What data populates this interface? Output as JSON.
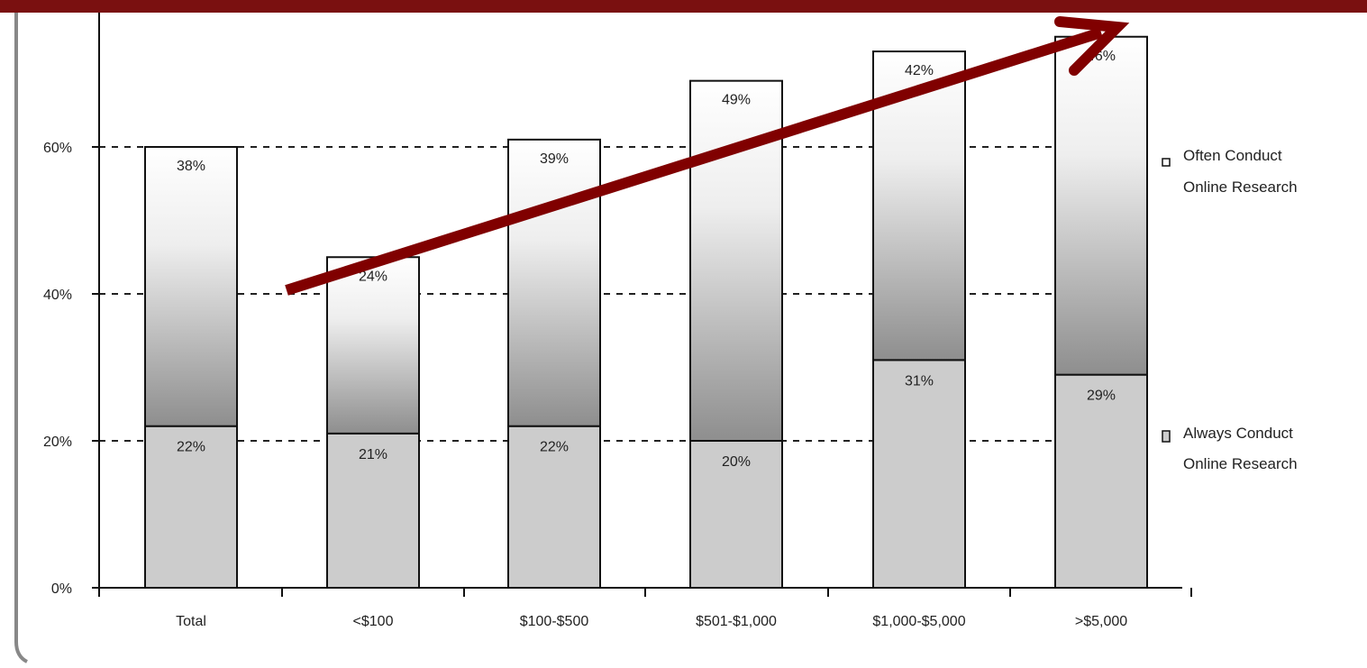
{
  "chart_data": {
    "type": "bar",
    "stacked": true,
    "categories": [
      "Total",
      "<$100",
      "$100-$500",
      "$501-$1,000",
      "$1,000-$5,000",
      ">$5,000"
    ],
    "series": [
      {
        "name": "Always Conduct Online Research",
        "values": [
          22,
          21,
          22,
          20,
          31,
          29
        ],
        "labels": [
          "22%",
          "21%",
          "22%",
          "20%",
          "31%",
          "29%"
        ]
      },
      {
        "name": "Often Conduct Online Research",
        "values": [
          38,
          24,
          39,
          49,
          42,
          46
        ],
        "labels": [
          "38%",
          "24%",
          "39%",
          "49%",
          "42%",
          "46%"
        ]
      }
    ],
    "y_ticks": [
      0,
      20,
      40,
      60
    ],
    "y_tick_labels": [
      "0%",
      "20%",
      "40%",
      "60%"
    ],
    "ylim": [
      0,
      75
    ],
    "grid": "horizontal dashed",
    "legend_position": "right",
    "legend": {
      "often_lines": [
        "Often Conduct",
        "Online Research"
      ],
      "always_lines": [
        "Always Conduct",
        "Online Research"
      ]
    },
    "annotation": "upward trend arrow",
    "colors": {
      "always_fill": "#cccccc",
      "often_gradient_top": "#ffffff",
      "often_gradient_bottom": "#8e8e8e",
      "frame_bar": "#7a1010",
      "arrow": "#800000",
      "left_border": "#888888"
    }
  }
}
